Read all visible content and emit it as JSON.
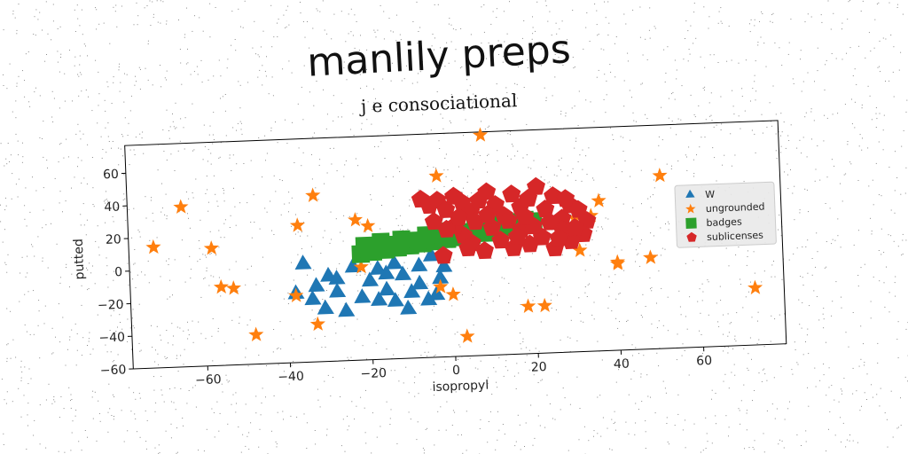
{
  "chart_data": {
    "type": "scatter",
    "title": "manlily preps",
    "subtitle": "j e consociational",
    "xlabel": "isopropyl",
    "ylabel": "putted",
    "xlim": [
      -78,
      80
    ],
    "ylim": [
      -60,
      77
    ],
    "xticks": [
      -60,
      -40,
      -20,
      0,
      20,
      40,
      60
    ],
    "yticks": [
      -60,
      -40,
      -20,
      0,
      20,
      40,
      60
    ],
    "grid": false,
    "legend_position": "right",
    "series": [
      {
        "name": "W",
        "marker": "triangle",
        "color": "#1f77b4",
        "points": [
          [
            -36,
            0
          ],
          [
            -38,
            -18
          ],
          [
            -34,
            -22
          ],
          [
            -31,
            -28
          ],
          [
            -28,
            -18
          ],
          [
            -26,
            -30
          ],
          [
            -22,
            -22
          ],
          [
            -20,
            -12
          ],
          [
            -18,
            -5
          ],
          [
            -16,
            -18
          ],
          [
            -14,
            -25
          ],
          [
            -12,
            -9
          ],
          [
            -10,
            -20
          ],
          [
            -8,
            -15
          ],
          [
            -6,
            -25
          ],
          [
            -4,
            -22
          ],
          [
            -2,
            -5
          ],
          [
            -18,
            -24
          ],
          [
            -30,
            -8
          ],
          [
            -24,
            -3
          ],
          [
            -14,
            -2
          ],
          [
            -8,
            -4
          ],
          [
            -3,
            -12
          ],
          [
            -28,
            -10
          ],
          [
            -5,
            2
          ],
          [
            -16,
            -8
          ],
          [
            -11,
            -30
          ],
          [
            -33,
            -14
          ]
        ]
      },
      {
        "name": "ungrounded",
        "marker": "star",
        "color": "#ff7f0e",
        "points": [
          [
            -72,
            14
          ],
          [
            -65,
            38
          ],
          [
            -58,
            12
          ],
          [
            -56,
            -12
          ],
          [
            -53,
            -13
          ],
          [
            -48,
            -42
          ],
          [
            -38,
            -19
          ],
          [
            -37,
            24
          ],
          [
            -33,
            42
          ],
          [
            -33,
            -37
          ],
          [
            -23,
            26
          ],
          [
            -22,
            -3
          ],
          [
            -3,
            -17
          ],
          [
            -3,
            51
          ],
          [
            0,
            -22
          ],
          [
            3,
            -48
          ],
          [
            8,
            75
          ],
          [
            18,
            -31
          ],
          [
            22,
            -31
          ],
          [
            31,
            2
          ],
          [
            34,
            23
          ],
          [
            36,
            32
          ],
          [
            40,
            -6
          ],
          [
            40,
            -7
          ],
          [
            48,
            -4
          ],
          [
            51,
            46
          ],
          [
            73,
            -25
          ],
          [
            -20,
            22
          ],
          [
            13,
            18
          ],
          [
            30,
            22
          ]
        ]
      },
      {
        "name": "badges",
        "marker": "square",
        "color": "#2ca02c",
        "points": [
          [
            -22,
            5
          ],
          [
            -19,
            6
          ],
          [
            -16,
            7
          ],
          [
            -13,
            8
          ],
          [
            -10,
            9
          ],
          [
            -7,
            10
          ],
          [
            -4,
            11
          ],
          [
            -1,
            12
          ],
          [
            2,
            13
          ],
          [
            5,
            14
          ],
          [
            8,
            15
          ],
          [
            11,
            17
          ],
          [
            14,
            18
          ],
          [
            17,
            19
          ],
          [
            20,
            21
          ],
          [
            -21,
            10
          ],
          [
            -17,
            12
          ],
          [
            -12,
            13
          ],
          [
            -6,
            15
          ],
          [
            0,
            17
          ],
          [
            6,
            18
          ],
          [
            12,
            20
          ],
          [
            18,
            22
          ],
          [
            -20,
            8
          ],
          [
            -14,
            10
          ],
          [
            -8,
            12
          ],
          [
            -2,
            14
          ],
          [
            4,
            16
          ],
          [
            10,
            18
          ],
          [
            16,
            21
          ]
        ]
      },
      {
        "name": "sublicenses",
        "marker": "pentagon",
        "color": "#d62728",
        "points": [
          [
            -7,
            37
          ],
          [
            -5,
            33
          ],
          [
            -3,
            36
          ],
          [
            -1,
            30
          ],
          [
            1,
            38
          ],
          [
            3,
            34
          ],
          [
            5,
            28
          ],
          [
            7,
            35
          ],
          [
            9,
            40
          ],
          [
            11,
            32
          ],
          [
            13,
            25
          ],
          [
            15,
            38
          ],
          [
            17,
            30
          ],
          [
            19,
            35
          ],
          [
            21,
            42
          ],
          [
            23,
            28
          ],
          [
            25,
            36
          ],
          [
            27,
            22
          ],
          [
            29,
            30
          ],
          [
            31,
            27
          ],
          [
            33,
            20
          ],
          [
            32,
            12
          ],
          [
            29,
            8
          ],
          [
            27,
            15
          ],
          [
            25,
            4
          ],
          [
            22,
            11
          ],
          [
            19,
            7
          ],
          [
            17,
            16
          ],
          [
            15,
            5
          ],
          [
            12,
            10
          ],
          [
            10,
            18
          ],
          [
            8,
            4
          ],
          [
            5,
            9
          ],
          [
            3,
            14
          ],
          [
            1,
            20
          ],
          [
            -1,
            18
          ],
          [
            -2,
            2
          ],
          [
            6,
            22
          ],
          [
            14,
            22
          ],
          [
            20,
            18
          ],
          [
            24,
            20
          ],
          [
            30,
            16
          ],
          [
            26,
            10
          ],
          [
            16,
            12
          ],
          [
            4,
            6
          ],
          [
            -4,
            23
          ],
          [
            2,
            25
          ],
          [
            9,
            26
          ],
          [
            18,
            24
          ],
          [
            28,
            34
          ]
        ]
      }
    ]
  }
}
